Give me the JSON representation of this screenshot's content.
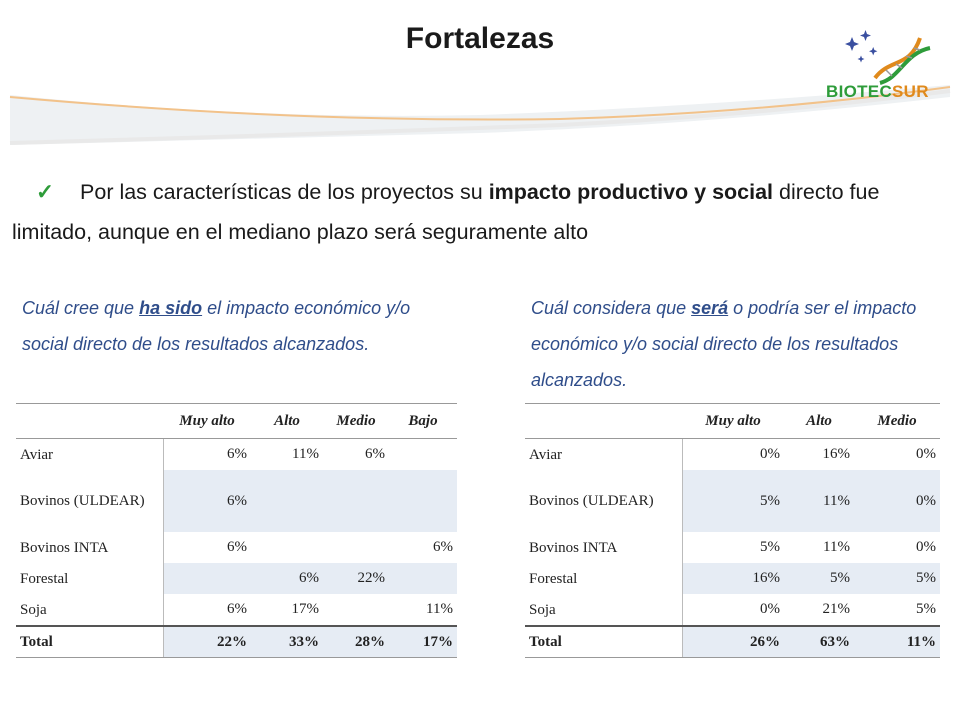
{
  "title": "Fortalezas",
  "logo": {
    "text_part1": "BIOTEC",
    "text_part2": "SUR"
  },
  "intro": {
    "check": "✓",
    "text_before": "Por las características de los proyectos su ",
    "text_bold": "impacto productivo y social",
    "text_after": " directo fue limitado, aunque en el mediano plazo será seguramente alto"
  },
  "question1": {
    "before": "Cuál cree que ",
    "underlined": "ha sido",
    "after": " el impacto económico y/o social directo de los resultados alcanzados."
  },
  "question2": {
    "before": "Cuál considera que ",
    "underlined": "será",
    "after": " o podría ser el impacto económico y/o social directo de los resultados alcanzados."
  },
  "table1": {
    "headers": [
      "",
      "Muy alto",
      "Alto",
      "Medio",
      "Bajo"
    ],
    "rows": [
      {
        "label": "Aviar",
        "cells": [
          "6%",
          "11%",
          "6%",
          ""
        ]
      },
      {
        "label": "Bovinos (ULDEAR)",
        "cells": [
          "6%",
          "",
          "",
          ""
        ]
      },
      {
        "label": "Bovinos INTA",
        "cells": [
          "6%",
          "",
          "",
          "6%"
        ]
      },
      {
        "label": "Forestal",
        "cells": [
          "",
          "6%",
          "22%",
          ""
        ]
      },
      {
        "label": "Soja",
        "cells": [
          "6%",
          "17%",
          "",
          "11%"
        ]
      }
    ],
    "total": {
      "label": "Total",
      "cells": [
        "22%",
        "33%",
        "28%",
        "17%"
      ]
    }
  },
  "table2": {
    "headers": [
      "",
      "Muy alto",
      "Alto",
      "Medio"
    ],
    "rows": [
      {
        "label": "Aviar",
        "cells": [
          "0%",
          "16%",
          "0%"
        ]
      },
      {
        "label": "Bovinos (ULDEAR)",
        "cells": [
          "5%",
          "11%",
          "0%"
        ]
      },
      {
        "label": "Bovinos INTA",
        "cells": [
          "5%",
          "11%",
          "0%"
        ]
      },
      {
        "label": "Forestal",
        "cells": [
          "16%",
          "5%",
          "5%"
        ]
      },
      {
        "label": "Soja",
        "cells": [
          "0%",
          "21%",
          "5%"
        ]
      }
    ],
    "total": {
      "label": "Total",
      "cells": [
        "26%",
        "63%",
        "11%"
      ]
    }
  }
}
